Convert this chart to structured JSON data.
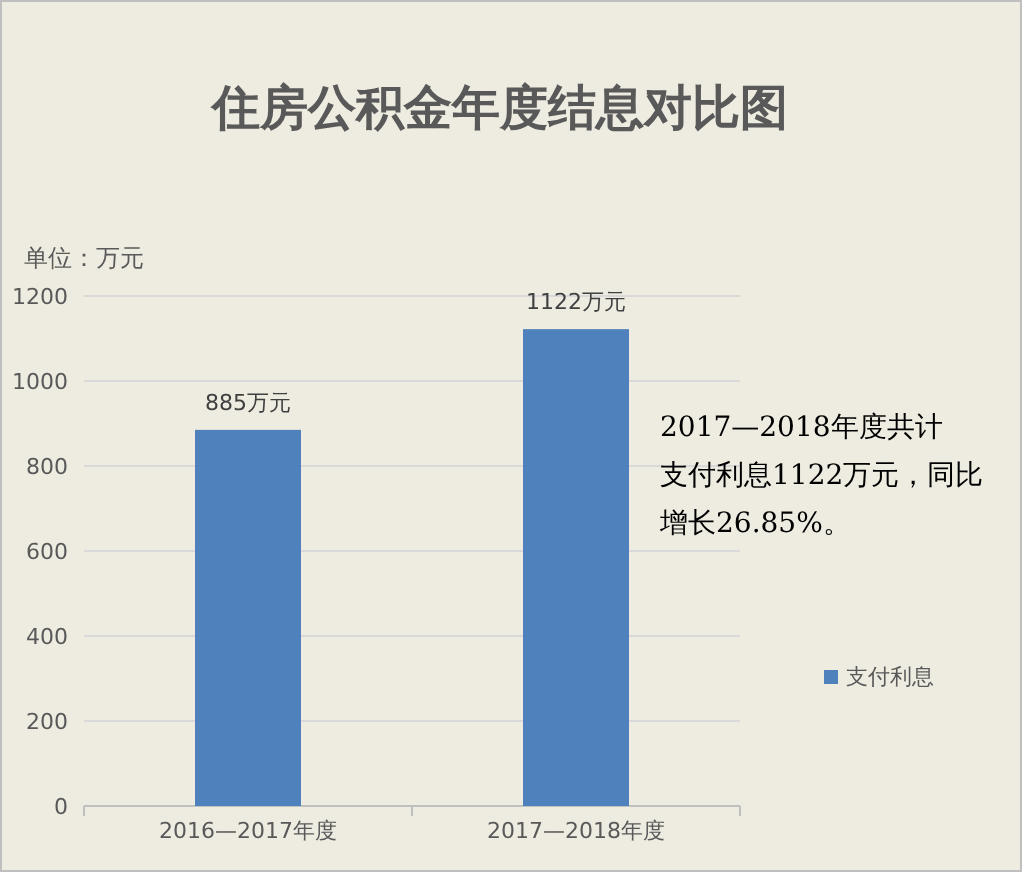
{
  "chart_data": {
    "type": "bar",
    "title": "住房公积金年度结息对比图",
    "ylabel": "单位：万元",
    "categories": [
      "2016—2017年度",
      "2017—2018年度"
    ],
    "series": [
      {
        "name": "支付利息",
        "color": "#4f81bd",
        "values": [
          885,
          1122
        ],
        "value_labels": [
          "885万元",
          "1122万元"
        ]
      }
    ],
    "ylim": [
      0,
      1200
    ],
    "yticks": [
      0,
      200,
      400,
      600,
      800,
      1000,
      1200
    ],
    "grid": "y",
    "legend": "right",
    "annotations": [
      "2017—2018年度共计支付利息1122万元，同比增长26.85%。"
    ]
  }
}
